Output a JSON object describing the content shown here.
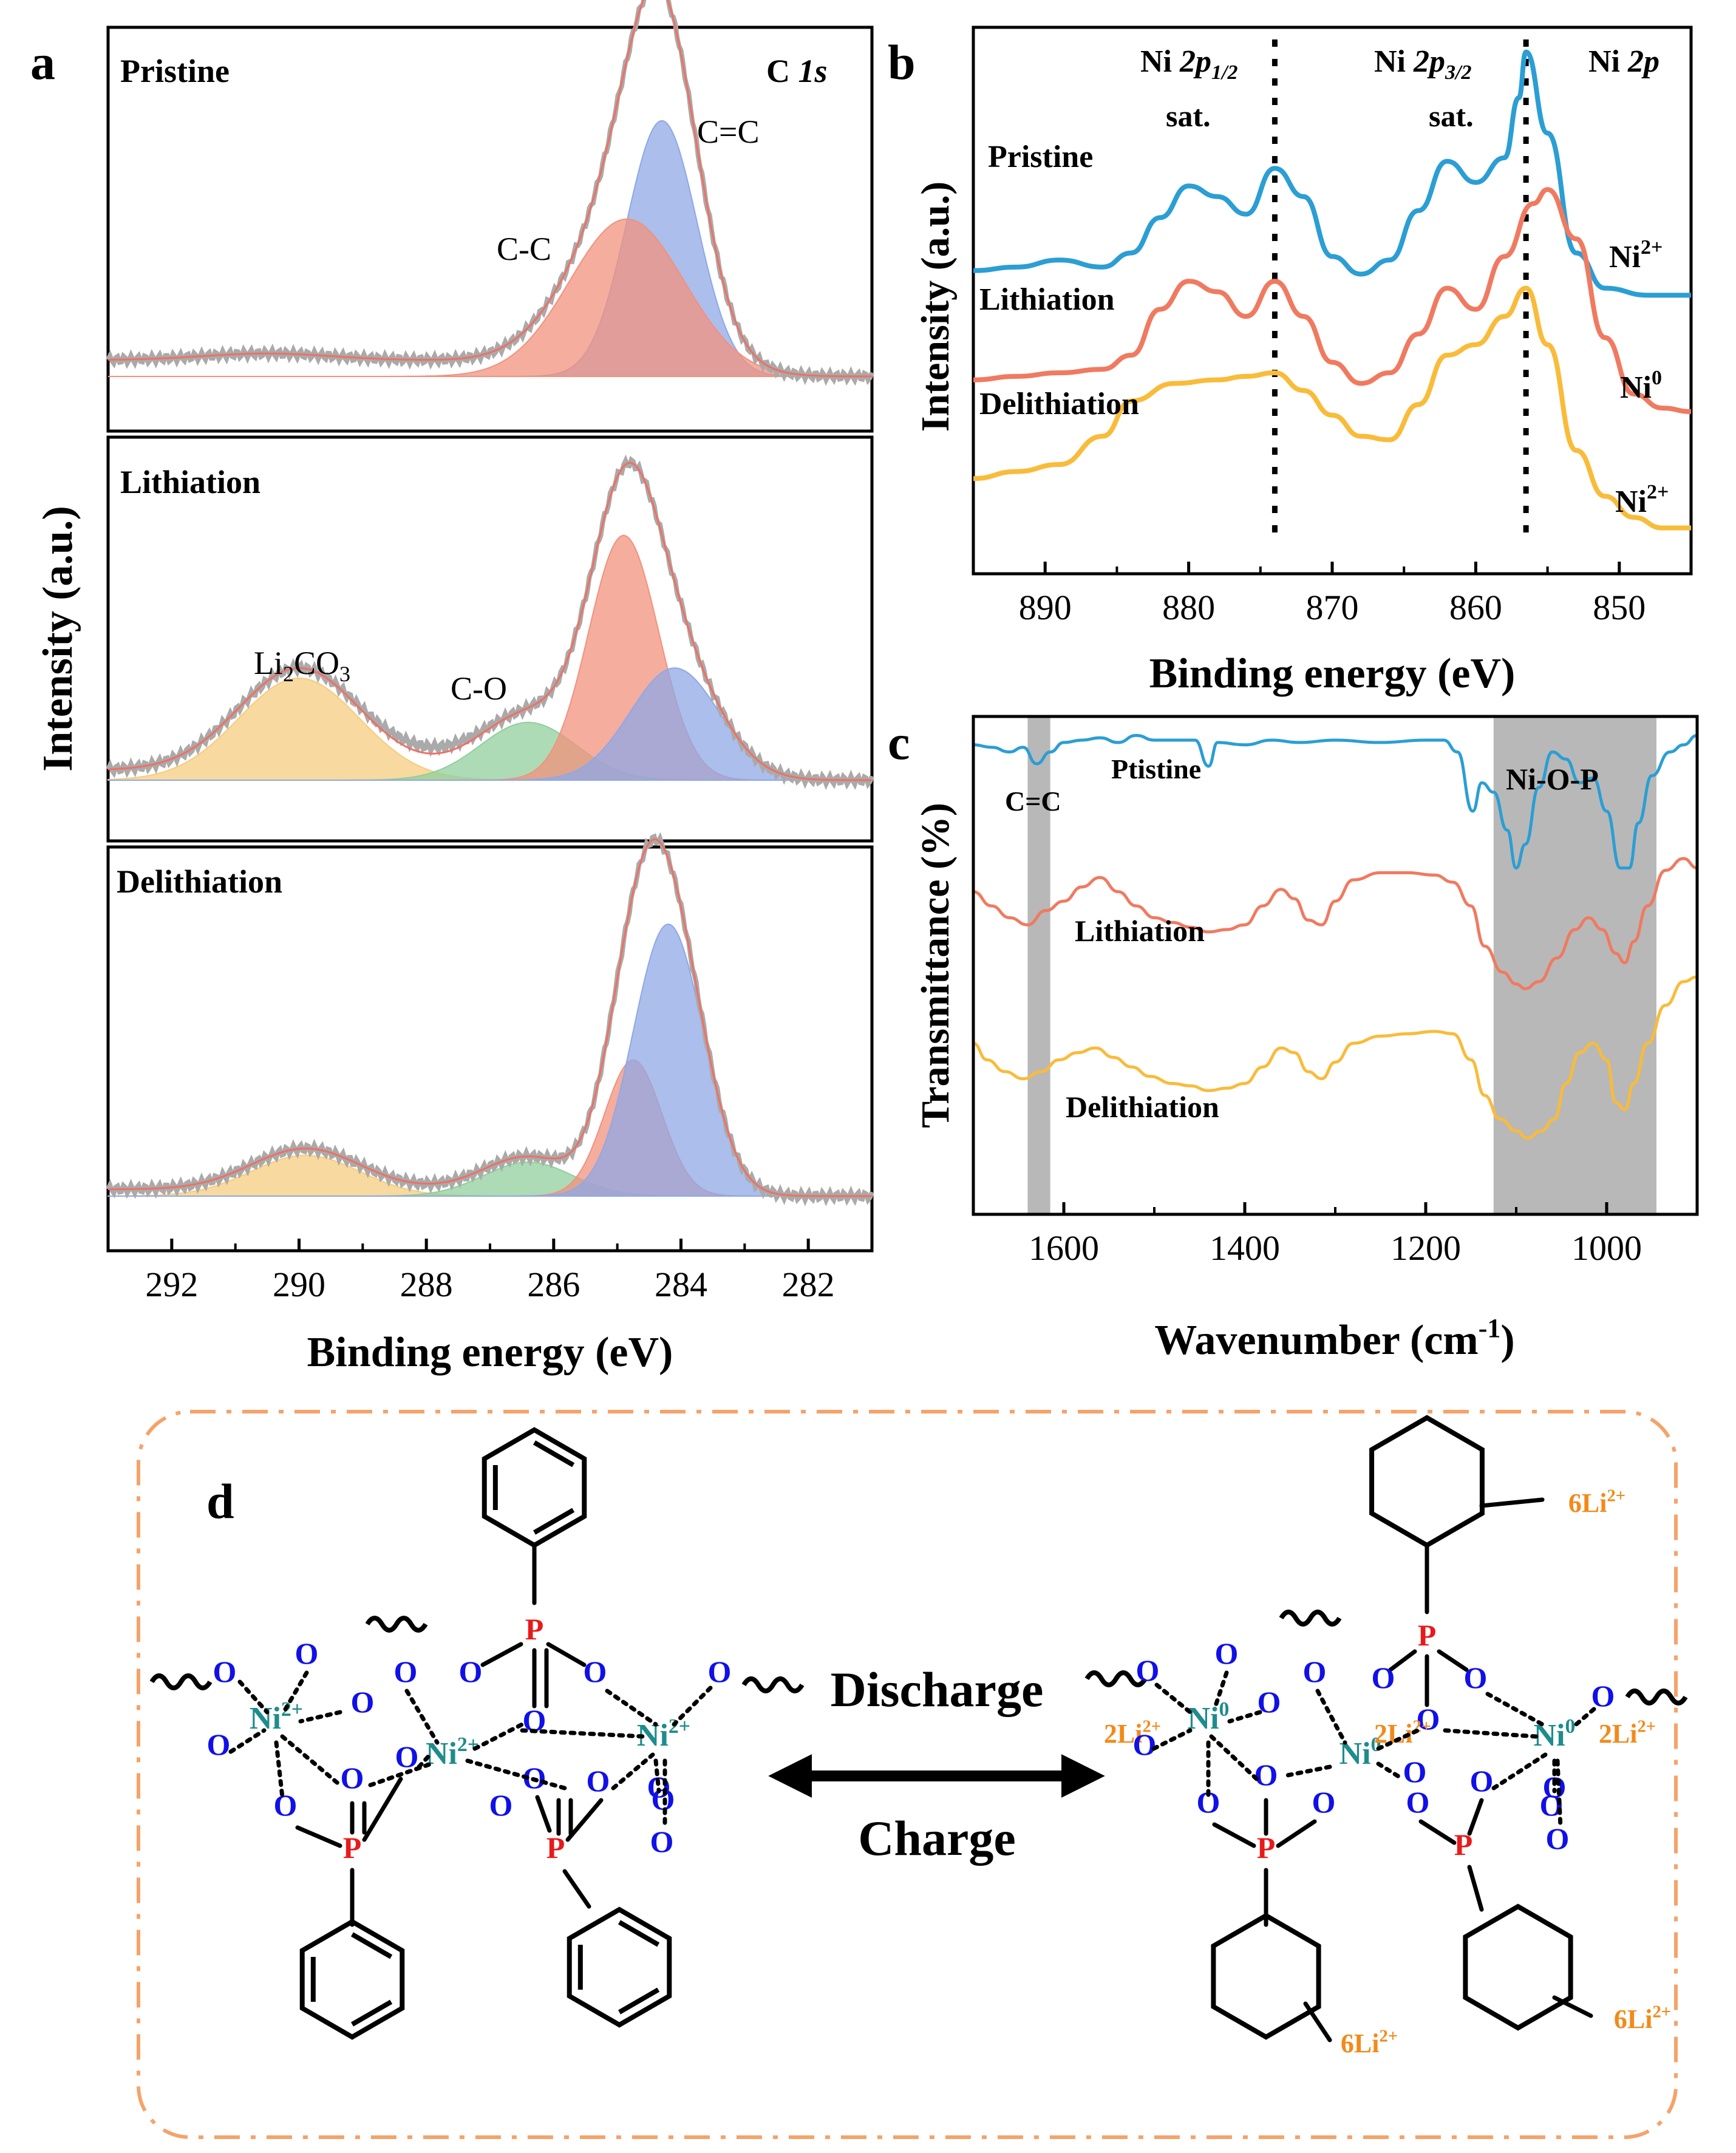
{
  "colors": {
    "blue": "#2b9ed4",
    "red": "#f07a60",
    "orange": "#f9bb3a",
    "c1s_blue": "#8fa8e6",
    "c1s_red": "#f2917e",
    "c1s_yellow": "#f5cc7f",
    "c1s_green": "#90cf9c",
    "envelope": "#f06f63",
    "ni_teal": "#1e8c8c",
    "o_blue": "#1010e8",
    "p_red": "#e81a1a",
    "li_orange": "#f28a1a",
    "dashed_border": "#f4a36a",
    "band_gray": "#b8b8b8"
  },
  "chart_data": [
    {
      "panel": "a",
      "type": "line",
      "xlabel": "Binding energy (eV)",
      "ylabel": "Intensity (a.u.)",
      "xlim": [
        293,
        281
      ],
      "xticks": [
        "292",
        "290",
        "288",
        "286",
        "284",
        "282"
      ],
      "subpanels": [
        {
          "label": "Pristine",
          "corner_label": "C 1s",
          "annotations": [
            "C=C",
            "C-C"
          ],
          "components": [
            {
              "name": "C=C",
              "center": 284.3,
              "width": 0.55,
              "height": 0.78
            },
            {
              "name": "C-C",
              "center": 284.85,
              "width": 0.9,
              "height": 0.48
            }
          ],
          "background": 0.05
        },
        {
          "label": "Lithiation",
          "annotations": [
            "Li2CO3",
            "C-O"
          ],
          "components": [
            {
              "name": "Li2CO3",
              "center": 290.0,
              "width": 0.95,
              "height": 0.3
            },
            {
              "name": "C-O",
              "center": 286.4,
              "width": 0.75,
              "height": 0.17
            },
            {
              "name": "C-C",
              "center": 284.9,
              "width": 0.55,
              "height": 0.72
            },
            {
              "name": "C=C",
              "center": 284.1,
              "width": 0.7,
              "height": 0.33
            }
          ],
          "background": 0.03
        },
        {
          "label": "Delithiation",
          "components": [
            {
              "name": "Li2CO3",
              "center": 289.9,
              "width": 0.85,
              "height": 0.12
            },
            {
              "name": "C-O",
              "center": 286.4,
              "width": 0.7,
              "height": 0.1
            },
            {
              "name": "C-C",
              "center": 284.75,
              "width": 0.45,
              "height": 0.4
            },
            {
              "name": "C=C",
              "center": 284.2,
              "width": 0.55,
              "height": 0.8
            }
          ],
          "background": 0.02
        }
      ]
    },
    {
      "panel": "b",
      "type": "line",
      "xlabel": "Binding energy (eV)",
      "ylabel": "Intensity (a.u.)",
      "xlim": [
        895,
        845
      ],
      "xticks": [
        "890",
        "880",
        "870",
        "860",
        "850"
      ],
      "corner_label": "Ni 2p",
      "peak_labels": [
        "Ni 2p1/2",
        "Ni 2p3/2",
        "sat.",
        "sat."
      ],
      "dashed_lines_at": [
        874.0,
        856.5
      ],
      "series": [
        {
          "name": "Pristine",
          "end_label": "Ni2+",
          "points": [
            [
              895,
              0.81
            ],
            [
              892,
              0.82
            ],
            [
              889,
              0.84
            ],
            [
              886,
              0.82
            ],
            [
              884,
              0.86
            ],
            [
              882,
              0.96
            ],
            [
              880,
              1.05
            ],
            [
              878,
              1.02
            ],
            [
              876,
              0.97
            ],
            [
              874,
              1.1
            ],
            [
              872,
              1.02
            ],
            [
              870,
              0.85
            ],
            [
              868,
              0.8
            ],
            [
              866,
              0.84
            ],
            [
              864,
              0.98
            ],
            [
              862,
              1.12
            ],
            [
              860,
              1.06
            ],
            [
              858,
              1.13
            ],
            [
              857,
              1.3
            ],
            [
              856.5,
              1.43
            ],
            [
              855,
              1.2
            ],
            [
              853,
              0.86
            ],
            [
              851,
              0.76
            ],
            [
              848,
              0.74
            ],
            [
              845,
              0.74
            ]
          ]
        },
        {
          "name": "Lithiation",
          "end_label": "Ni0",
          "points": [
            [
              895,
              0.5
            ],
            [
              892,
              0.51
            ],
            [
              889,
              0.52
            ],
            [
              886,
              0.53
            ],
            [
              884,
              0.57
            ],
            [
              882,
              0.7
            ],
            [
              880,
              0.78
            ],
            [
              878,
              0.75
            ],
            [
              876,
              0.68
            ],
            [
              874,
              0.78
            ],
            [
              872,
              0.68
            ],
            [
              870,
              0.55
            ],
            [
              868,
              0.49
            ],
            [
              866,
              0.52
            ],
            [
              864,
              0.63
            ],
            [
              862,
              0.76
            ],
            [
              860,
              0.7
            ],
            [
              858,
              0.85
            ],
            [
              856,
              1.0
            ],
            [
              855,
              1.04
            ],
            [
              853,
              0.9
            ],
            [
              851,
              0.62
            ],
            [
              849,
              0.46
            ],
            [
              847,
              0.42
            ],
            [
              845,
              0.41
            ]
          ]
        },
        {
          "name": "Delithiation",
          "end_label": "Ni2+",
          "points": [
            [
              895,
              0.22
            ],
            [
              892,
              0.24
            ],
            [
              889,
              0.26
            ],
            [
              886,
              0.34
            ],
            [
              884,
              0.44
            ],
            [
              881,
              0.49
            ],
            [
              878,
              0.5
            ],
            [
              876,
              0.51
            ],
            [
              874,
              0.52
            ],
            [
              872,
              0.47
            ],
            [
              870,
              0.4
            ],
            [
              868,
              0.34
            ],
            [
              866,
              0.33
            ],
            [
              864,
              0.43
            ],
            [
              862,
              0.57
            ],
            [
              860,
              0.6
            ],
            [
              858,
              0.68
            ],
            [
              856.5,
              0.76
            ],
            [
              855,
              0.6
            ],
            [
              853,
              0.3
            ],
            [
              851,
              0.17
            ],
            [
              849,
              0.11
            ],
            [
              847,
              0.08
            ],
            [
              845,
              0.08
            ]
          ]
        }
      ]
    },
    {
      "panel": "c",
      "type": "line",
      "xlabel": "Wavenumber (cm⁻¹)",
      "ylabel": "Transmittance (%)",
      "xlim": [
        1700,
        900
      ],
      "xticks": [
        "1600",
        "1400",
        "1200",
        "1000"
      ],
      "bands": [
        {
          "label": "C=C",
          "from": 1640,
          "to": 1615
        },
        {
          "label": "Ni-O-P",
          "from": 1125,
          "to": 945
        }
      ],
      "series": [
        {
          "name": "Ptistine",
          "points": [
            [
              1700,
              0.88
            ],
            [
              1680,
              0.87
            ],
            [
              1660,
              0.85
            ],
            [
              1645,
              0.87
            ],
            [
              1630,
              0.8
            ],
            [
              1615,
              0.85
            ],
            [
              1600,
              0.89
            ],
            [
              1580,
              0.9
            ],
            [
              1560,
              0.91
            ],
            [
              1540,
              0.89
            ],
            [
              1520,
              0.92
            ],
            [
              1500,
              0.9
            ],
            [
              1480,
              0.9
            ],
            [
              1455,
              0.9
            ],
            [
              1440,
              0.79
            ],
            [
              1430,
              0.89
            ],
            [
              1400,
              0.88
            ],
            [
              1370,
              0.9
            ],
            [
              1340,
              0.89
            ],
            [
              1300,
              0.9
            ],
            [
              1250,
              0.89
            ],
            [
              1200,
              0.9
            ],
            [
              1180,
              0.9
            ],
            [
              1165,
              0.85
            ],
            [
              1148,
              0.6
            ],
            [
              1138,
              0.72
            ],
            [
              1125,
              0.68
            ],
            [
              1110,
              0.52
            ],
            [
              1100,
              0.36
            ],
            [
              1090,
              0.46
            ],
            [
              1075,
              0.7
            ],
            [
              1060,
              0.85
            ],
            [
              1045,
              0.82
            ],
            [
              1030,
              0.72
            ],
            [
              1015,
              0.74
            ],
            [
              1000,
              0.6
            ],
            [
              985,
              0.36
            ],
            [
              975,
              0.36
            ],
            [
              965,
              0.55
            ],
            [
              950,
              0.75
            ],
            [
              930,
              0.85
            ],
            [
              915,
              0.88
            ],
            [
              900,
              0.92
            ]
          ]
        },
        {
          "name": "Lithiation",
          "points": [
            [
              1700,
              0.26
            ],
            [
              1680,
              0.2
            ],
            [
              1660,
              0.15
            ],
            [
              1640,
              0.12
            ],
            [
              1620,
              0.18
            ],
            [
              1600,
              0.22
            ],
            [
              1580,
              0.28
            ],
            [
              1560,
              0.32
            ],
            [
              1540,
              0.26
            ],
            [
              1520,
              0.2
            ],
            [
              1500,
              0.15
            ],
            [
              1480,
              0.13
            ],
            [
              1460,
              0.11
            ],
            [
              1440,
              0.09
            ],
            [
              1420,
              0.1
            ],
            [
              1400,
              0.12
            ],
            [
              1380,
              0.2
            ],
            [
              1360,
              0.27
            ],
            [
              1345,
              0.23
            ],
            [
              1330,
              0.14
            ],
            [
              1315,
              0.12
            ],
            [
              1300,
              0.22
            ],
            [
              1280,
              0.31
            ],
            [
              1250,
              0.34
            ],
            [
              1220,
              0.34
            ],
            [
              1190,
              0.33
            ],
            [
              1170,
              0.3
            ],
            [
              1150,
              0.2
            ],
            [
              1135,
              0.03
            ],
            [
              1115,
              -0.08
            ],
            [
              1100,
              -0.13
            ],
            [
              1090,
              -0.15
            ],
            [
              1075,
              -0.12
            ],
            [
              1055,
              -0.02
            ],
            [
              1035,
              0.1
            ],
            [
              1020,
              0.15
            ],
            [
              1005,
              0.1
            ],
            [
              990,
              0.0
            ],
            [
              980,
              -0.04
            ],
            [
              970,
              0.05
            ],
            [
              955,
              0.2
            ],
            [
              935,
              0.35
            ],
            [
              915,
              0.4
            ],
            [
              900,
              0.36
            ]
          ]
        },
        {
          "name": "Delithiation",
          "points": [
            [
              1700,
              -0.38
            ],
            [
              1685,
              -0.45
            ],
            [
              1665,
              -0.5
            ],
            [
              1645,
              -0.53
            ],
            [
              1625,
              -0.5
            ],
            [
              1605,
              -0.45
            ],
            [
              1585,
              -0.42
            ],
            [
              1565,
              -0.4
            ],
            [
              1545,
              -0.44
            ],
            [
              1525,
              -0.48
            ],
            [
              1505,
              -0.52
            ],
            [
              1480,
              -0.55
            ],
            [
              1460,
              -0.56
            ],
            [
              1440,
              -0.58
            ],
            [
              1420,
              -0.57
            ],
            [
              1400,
              -0.55
            ],
            [
              1380,
              -0.48
            ],
            [
              1360,
              -0.4
            ],
            [
              1345,
              -0.42
            ],
            [
              1330,
              -0.5
            ],
            [
              1315,
              -0.53
            ],
            [
              1300,
              -0.46
            ],
            [
              1280,
              -0.38
            ],
            [
              1250,
              -0.35
            ],
            [
              1220,
              -0.34
            ],
            [
              1190,
              -0.33
            ],
            [
              1170,
              -0.34
            ],
            [
              1150,
              -0.45
            ],
            [
              1135,
              -0.6
            ],
            [
              1118,
              -0.7
            ],
            [
              1100,
              -0.75
            ],
            [
              1088,
              -0.78
            ],
            [
              1072,
              -0.75
            ],
            [
              1058,
              -0.7
            ],
            [
              1045,
              -0.55
            ],
            [
              1030,
              -0.42
            ],
            [
              1015,
              -0.38
            ],
            [
              1000,
              -0.45
            ],
            [
              990,
              -0.63
            ],
            [
              980,
              -0.66
            ],
            [
              970,
              -0.55
            ],
            [
              955,
              -0.38
            ],
            [
              935,
              -0.22
            ],
            [
              915,
              -0.12
            ],
            [
              900,
              -0.1
            ]
          ]
        }
      ]
    }
  ],
  "figure": {
    "panel_labels": {
      "a": "a",
      "b": "b",
      "c": "c",
      "d": "d"
    },
    "panel_a": {
      "labels": {
        "pristine": "Pristine",
        "c1s_c": "C ",
        "c1s_s": "1s",
        "cc_double": "C=C",
        "cc_single": "C-C",
        "lithiation": "Lithiation",
        "li2co3_li": "Li",
        "li2co3_sub": "2",
        "li2co3_co": "CO",
        "li2co3_sub2": "3",
        "co": "C-O",
        "delithiation": "Delithiation"
      }
    },
    "panel_b": {
      "labels": {
        "ni2p12_main": "Ni ",
        "ni2p12_2p": "2p",
        "ni2p12_sub": "1/2",
        "ni2p32_main": "Ni ",
        "ni2p32_2p": "2p",
        "ni2p32_sub": "3/2",
        "ni2p_corner_ni": "Ni ",
        "ni2p_corner_2p": "2p",
        "sat1": "sat.",
        "sat2": "sat.",
        "pristine": "Pristine",
        "lithiation": "Lithiation",
        "delithiation": "Delithiation",
        "ni_a": "Ni",
        "ni_a_sup": "2+",
        "ni_b": "Ni",
        "ni_b_sup": "0",
        "ni_c": "Ni",
        "ni_c_sup": "2+"
      }
    },
    "panel_c": {
      "labels": {
        "cc": "C=C",
        "nio_p": "Ni-O-P",
        "ptistine": "Ptistine",
        "lithiation": "Lithiation",
        "delithiation": "Delithiation",
        "xlabel_main": "Wavenumber (cm",
        "xlabel_sup": "-1",
        "xlabel_close": ")"
      }
    },
    "panel_d": {
      "discharge": "Discharge",
      "charge": "Charge",
      "ni": "Ni",
      "sup_2plus": "2+",
      "sup_0": "0",
      "o": "O",
      "p": "P",
      "li_2": "2Li",
      "li_6": "6Li"
    }
  }
}
